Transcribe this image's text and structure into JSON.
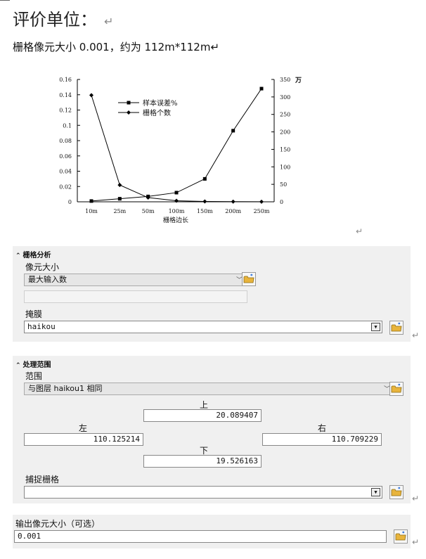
{
  "heading": {
    "title": "评价单位：",
    "return_mark": "↵"
  },
  "subtitle": "栅格像元大小 0.001，约为 112m*112m↵",
  "chart_data": {
    "type": "line",
    "categories": [
      "10m",
      "25m",
      "50m",
      "100m",
      "150m",
      "200m",
      "250m"
    ],
    "xlabel": "栅格边长",
    "y_left": {
      "ticks": [
        "0",
        "0.02",
        "0.04",
        "0.06",
        "0.08",
        "0.1",
        "0.12",
        "0.14",
        "0.16"
      ],
      "ylim": [
        0,
        0.16
      ]
    },
    "y_right": {
      "ticks": [
        "0",
        "50",
        "100",
        "150",
        "200",
        "250",
        "300",
        "350"
      ],
      "ylim": [
        0,
        350
      ],
      "unit": "万"
    },
    "series": [
      {
        "name": "样本误差%",
        "marker": "square",
        "axis": "left",
        "values": [
          0.001,
          0.004,
          0.007,
          0.012,
          0.03,
          0.093,
          0.148
        ]
      },
      {
        "name": "栅格个数",
        "marker": "diamond",
        "axis": "right",
        "values": [
          305,
          48,
          12,
          3,
          1,
          0.5,
          0.3
        ]
      }
    ],
    "legend": "top-center",
    "grid": false
  },
  "chart_return_mark": "↵",
  "raster_panel": {
    "header": "栅格分析",
    "chevron": "⌃",
    "cell_size_label": "像元大小",
    "cell_size_value": "最大输入数",
    "mask_label": "掩膜",
    "mask_value": "haikou",
    "icons": {
      "folder": "folder-icon",
      "dropdown": "dropdown-arrow-icon"
    }
  },
  "extent_panel": {
    "header": "处理范围",
    "extent_label": "范围",
    "extent_value": "与图层 haikou1 相同",
    "top_label": "上",
    "top_value": "20.089407",
    "left_label": "左",
    "left_value": "110.125214",
    "right_label": "右",
    "right_value": "110.709229",
    "bottom_label": "下",
    "bottom_value": "19.526163",
    "snap_label": "捕捉栅格",
    "snap_value": ""
  },
  "output_panel": {
    "label": "输出像元大小（可选）",
    "value": "0.001"
  }
}
